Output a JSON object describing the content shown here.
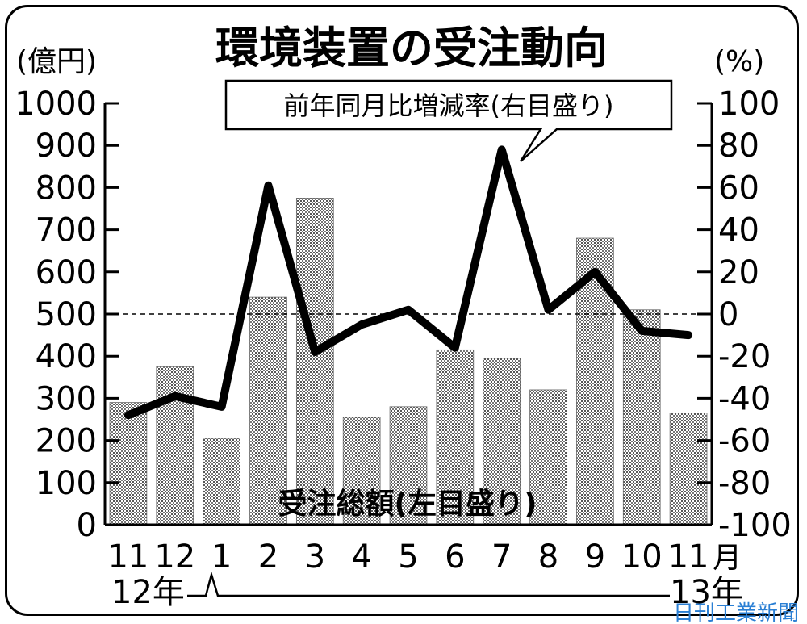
{
  "chart_data": {
    "type": "bar",
    "title": "環境装置の受注動向",
    "categories": [
      "11",
      "12",
      "1",
      "2",
      "3",
      "4",
      "5",
      "6",
      "7",
      "8",
      "9",
      "10",
      "11"
    ],
    "month_suffix": "月",
    "year_labels": [
      "12年",
      "13年"
    ],
    "left_axis": {
      "unit": "(億円)",
      "ylim": [
        0,
        1000
      ],
      "ticks": [
        0,
        100,
        200,
        300,
        400,
        500,
        600,
        700,
        800,
        900,
        1000
      ]
    },
    "right_axis": {
      "unit": "(%)",
      "ylim": [
        -100,
        100
      ],
      "ticks": [
        100,
        80,
        60,
        40,
        20,
        0,
        -20,
        -40,
        -60,
        -80,
        -100
      ]
    },
    "series": [
      {
        "name": "受注総額(左目盛り)",
        "type": "bar",
        "axis": "left",
        "values": [
          290,
          375,
          205,
          540,
          775,
          255,
          280,
          415,
          395,
          320,
          680,
          510,
          265
        ]
      },
      {
        "name": "前年同月比増減率(右目盛り)",
        "type": "line",
        "axis": "right",
        "values": [
          -48,
          -39,
          -44,
          61,
          -18,
          -5,
          2,
          -16,
          78,
          2,
          20,
          -8,
          -10
        ]
      }
    ],
    "reference_line": 0,
    "colors": {
      "bar_fill": "#c8c8c8",
      "line": "#000000",
      "credit": "#2a7fd4"
    }
  },
  "credit": "日刊工業新聞"
}
